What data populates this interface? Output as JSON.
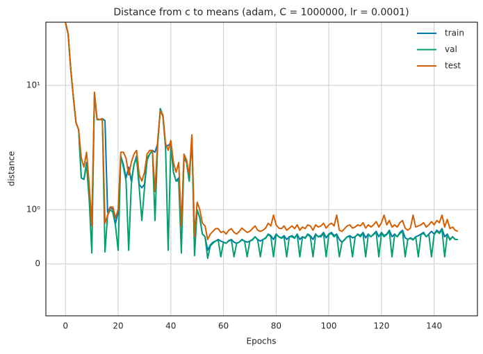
{
  "chart_data": {
    "type": "line",
    "title": "Distance from c to means (adam, C = 1000000, lr = 0.0001)",
    "xlabel": "Epochs",
    "ylabel": "distance",
    "x": [
      0,
      1,
      2,
      3,
      4,
      5,
      6,
      7,
      8,
      9,
      10,
      11,
      12,
      13,
      14,
      15,
      16,
      17,
      18,
      19,
      20,
      21,
      22,
      23,
      24,
      25,
      26,
      27,
      28,
      29,
      30,
      31,
      32,
      33,
      34,
      35,
      36,
      37,
      38,
      39,
      40,
      41,
      42,
      43,
      44,
      45,
      46,
      47,
      48,
      49,
      50,
      51,
      52,
      53,
      54,
      55,
      56,
      57,
      58,
      59,
      60,
      61,
      62,
      63,
      64,
      65,
      66,
      67,
      68,
      69,
      70,
      71,
      72,
      73,
      74,
      75,
      76,
      77,
      78,
      79,
      80,
      81,
      82,
      83,
      84,
      85,
      86,
      87,
      88,
      89,
      90,
      91,
      92,
      93,
      94,
      95,
      96,
      97,
      98,
      99,
      100,
      101,
      102,
      103,
      104,
      105,
      106,
      107,
      108,
      109,
      110,
      111,
      112,
      113,
      114,
      115,
      116,
      117,
      118,
      119,
      120,
      121,
      122,
      123,
      124,
      125,
      126,
      127,
      128,
      129,
      130,
      131,
      132,
      133,
      134,
      135,
      136,
      137,
      138,
      139,
      140,
      141,
      142,
      143,
      144,
      145,
      146,
      147,
      148,
      149
    ],
    "series": [
      {
        "name": "train",
        "color": "#0173b2",
        "values": [
          32,
          26,
          13.5,
          8,
          5,
          4.4,
          1.8,
          1.75,
          2.4,
          1.3,
          0.7,
          8.4,
          5.3,
          5.3,
          5.4,
          5.2,
          0.95,
          1.05,
          1.0,
          0.75,
          0.95,
          2.7,
          2.3,
          1.8,
          2.2,
          1.7,
          2.3,
          2.7,
          1.6,
          1.5,
          1.6,
          2.6,
          2.8,
          3.0,
          2.9,
          3.4,
          6.5,
          5.7,
          3.2,
          3.3,
          3.4,
          2.0,
          1.7,
          1.8,
          0.7,
          2.6,
          2.4,
          1.7,
          3.9,
          0.5,
          1.0,
          0.85,
          0.55,
          0.5,
          0.25,
          0.35,
          0.4,
          0.42,
          0.45,
          0.42,
          0.4,
          0.38,
          0.43,
          0.45,
          0.4,
          0.38,
          0.4,
          0.45,
          0.42,
          0.4,
          0.42,
          0.45,
          0.5,
          0.45,
          0.42,
          0.45,
          0.48,
          0.55,
          0.52,
          0.45,
          0.55,
          0.5,
          0.48,
          0.52,
          0.45,
          0.5,
          0.52,
          0.48,
          0.55,
          0.45,
          0.5,
          0.48,
          0.55,
          0.52,
          0.45,
          0.55,
          0.5,
          0.52,
          0.58,
          0.48,
          0.55,
          0.58,
          0.52,
          0.55,
          0.45,
          0.4,
          0.45,
          0.5,
          0.52,
          0.48,
          0.5,
          0.55,
          0.52,
          0.58,
          0.48,
          0.55,
          0.5,
          0.55,
          0.6,
          0.5,
          0.58,
          0.52,
          0.55,
          0.62,
          0.5,
          0.55,
          0.5,
          0.58,
          0.62,
          0.48,
          0.45,
          0.48,
          0.45,
          0.5,
          0.52,
          0.55,
          0.58,
          0.5,
          0.55,
          0.6,
          0.55,
          0.62,
          0.58,
          0.65,
          0.5,
          0.55,
          0.45,
          0.5,
          0.45,
          0.45
        ]
      },
      {
        "name": "val",
        "color": "#029e73",
        "values": [
          32,
          26,
          13.5,
          8,
          5,
          4.4,
          1.8,
          1.75,
          2.3,
          1.2,
          0.2,
          8.4,
          5.3,
          5.3,
          5.3,
          0.22,
          0.9,
          1.0,
          0.95,
          0.7,
          0.25,
          2.7,
          2.2,
          1.7,
          0.25,
          1.6,
          2.3,
          2.6,
          1.5,
          0.8,
          1.5,
          2.5,
          2.8,
          3.0,
          0.8,
          3.3,
          6.4,
          5.6,
          3.2,
          0.25,
          3.3,
          2.0,
          1.7,
          1.7,
          0.2,
          2.6,
          2.4,
          1.7,
          3.9,
          0.15,
          1.0,
          0.85,
          0.55,
          0.5,
          0.1,
          0.33,
          0.38,
          0.42,
          0.44,
          0.13,
          0.4,
          0.38,
          0.42,
          0.44,
          0.13,
          0.38,
          0.4,
          0.44,
          0.42,
          0.13,
          0.42,
          0.44,
          0.5,
          0.44,
          0.13,
          0.45,
          0.47,
          0.54,
          0.5,
          0.13,
          0.54,
          0.5,
          0.47,
          0.5,
          0.13,
          0.5,
          0.5,
          0.47,
          0.54,
          0.13,
          0.5,
          0.47,
          0.54,
          0.5,
          0.13,
          0.54,
          0.5,
          0.5,
          0.56,
          0.13,
          0.54,
          0.56,
          0.5,
          0.54,
          0.13,
          0.4,
          0.44,
          0.5,
          0.5,
          0.13,
          0.5,
          0.54,
          0.5,
          0.56,
          0.13,
          0.54,
          0.5,
          0.54,
          0.58,
          0.13,
          0.56,
          0.5,
          0.54,
          0.6,
          0.13,
          0.54,
          0.5,
          0.56,
          0.6,
          0.13,
          0.45,
          0.47,
          0.44,
          0.5,
          0.13,
          0.54,
          0.56,
          0.5,
          0.54,
          0.13,
          0.54,
          0.6,
          0.56,
          0.63,
          0.13,
          0.54,
          0.44,
          0.5,
          0.45,
          0.45
        ]
      },
      {
        "name": "test",
        "color": "#d55e00",
        "values": [
          32,
          26,
          13.5,
          8,
          5,
          4.4,
          2.6,
          2.2,
          2.9,
          1.6,
          0.7,
          8.8,
          5.4,
          5.3,
          5.4,
          0.75,
          0.9,
          1.05,
          1.05,
          0.85,
          1.0,
          2.9,
          2.9,
          2.6,
          1.9,
          2.4,
          2.8,
          3.0,
          1.9,
          1.7,
          2.0,
          2.8,
          3.0,
          3.0,
          1.4,
          3.6,
          6.2,
          5.8,
          3.4,
          3.0,
          3.6,
          2.4,
          2.0,
          2.4,
          0.7,
          2.8,
          2.5,
          1.9,
          4.0,
          0.5,
          1.15,
          1.0,
          0.75,
          0.7,
          0.45,
          0.55,
          0.6,
          0.65,
          0.65,
          0.58,
          0.6,
          0.55,
          0.62,
          0.65,
          0.58,
          0.55,
          0.6,
          0.66,
          0.62,
          0.58,
          0.6,
          0.65,
          0.7,
          0.62,
          0.6,
          0.62,
          0.66,
          0.75,
          0.7,
          0.9,
          0.72,
          0.66,
          0.65,
          0.7,
          0.62,
          0.66,
          0.7,
          0.65,
          0.72,
          0.62,
          0.68,
          0.65,
          0.72,
          0.7,
          0.62,
          0.72,
          0.68,
          0.7,
          0.75,
          0.66,
          0.72,
          0.75,
          0.7,
          0.9,
          0.62,
          0.6,
          0.65,
          0.7,
          0.72,
          0.66,
          0.68,
          0.72,
          0.7,
          0.76,
          0.66,
          0.72,
          0.68,
          0.72,
          0.78,
          0.68,
          0.76,
          0.9,
          0.72,
          0.8,
          0.68,
          0.72,
          0.68,
          0.76,
          0.8,
          0.66,
          0.62,
          0.66,
          0.9,
          0.68,
          0.7,
          0.72,
          0.76,
          0.68,
          0.72,
          0.78,
          0.72,
          0.8,
          0.76,
          0.9,
          0.68,
          0.82,
          0.65,
          0.68,
          0.62,
          0.6
        ]
      }
    ],
    "xlim": [
      -7.45,
      156.45
    ],
    "xticks": [
      0,
      20,
      40,
      60,
      80,
      100,
      120,
      140
    ],
    "yscale": {
      "type": "symlog",
      "linthresh": 1,
      "linscale": 0.392
    },
    "ylim": [
      -0.96,
      32.2
    ],
    "yticks": [
      0,
      {
        "value": 1,
        "label": "10⁰"
      },
      {
        "value": 10,
        "label": "10¹"
      }
    ],
    "grid": true,
    "legend": "upper right"
  }
}
